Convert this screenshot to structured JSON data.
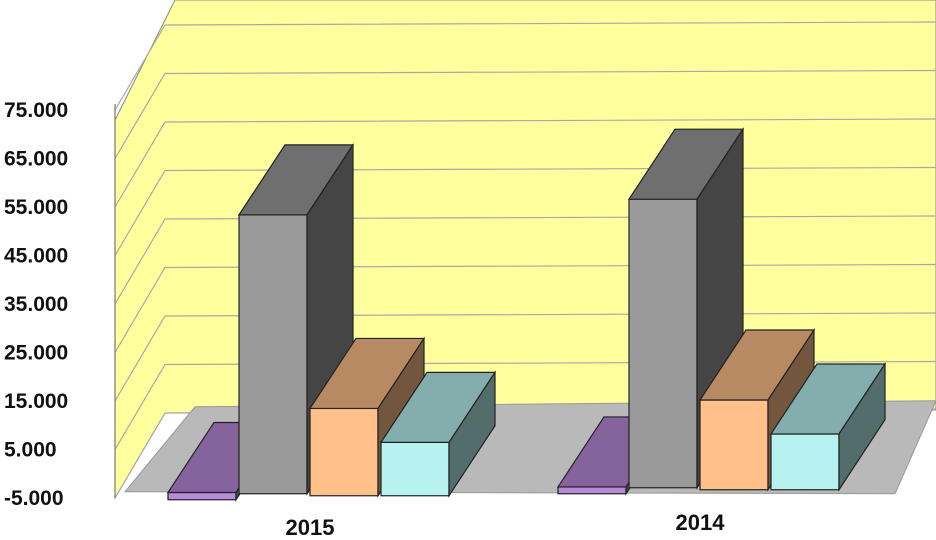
{
  "chart_data": {
    "type": "bar",
    "style": "3d-clustered-column",
    "categories": [
      "2015",
      "2014"
    ],
    "y_ticks": [
      "75.000",
      "65.000",
      "55.000",
      "45.000",
      "35.000",
      "25.000",
      "15.000",
      "5.000",
      "-5.000"
    ],
    "ylim": [
      -5000,
      75000
    ],
    "grid": true,
    "legend": "none",
    "series": [
      {
        "color": "#b98ad8",
        "values": [
          1500,
          1400
        ]
      },
      {
        "color": "#9a9a9a",
        "values": [
          57500,
          59500
        ]
      },
      {
        "color": "#ffc08a",
        "values": [
          18000,
          18500
        ]
      },
      {
        "color": "#b6f2f0",
        "values": [
          11000,
          11500
        ]
      }
    ],
    "wall_color": "#ffff9e",
    "floor_color": "#b9b9b9"
  }
}
